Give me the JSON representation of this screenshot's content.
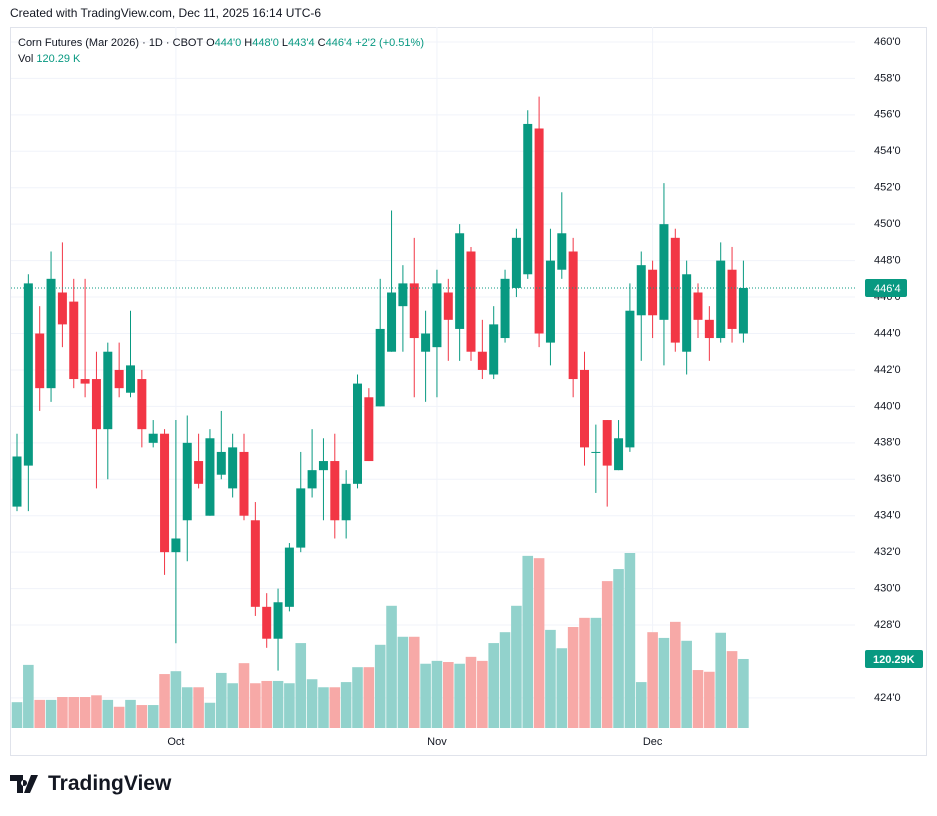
{
  "created": "Created with TradingView.com, Dec 11, 2025 16:14 UTC-6",
  "logo": "TradingView",
  "chart_data": {
    "type": "candlestick",
    "symbol": "Corn Futures (Mar 2026) · 1D · CBOT",
    "ohlc_legend": [
      {
        "key": "O",
        "value": "444'0"
      },
      {
        "key": "H",
        "value": "448'0"
      },
      {
        "key": "L",
        "value": "443'4"
      },
      {
        "key": "C",
        "value": "446'4"
      }
    ],
    "change": "+2'2 (+0.51%)",
    "volume_legend": {
      "key": "Vol",
      "value": "120.29 K"
    },
    "categories": [
      null,
      null,
      null,
      null,
      null,
      null,
      null,
      null,
      null,
      null,
      null,
      null,
      null,
      null,
      "Oct",
      null,
      null,
      null,
      null,
      null,
      null,
      null,
      null,
      null,
      null,
      null,
      null,
      null,
      null,
      null,
      null,
      null,
      null,
      null,
      null,
      null,
      null,
      "Nov",
      null,
      null,
      null,
      null,
      null,
      null,
      null,
      null,
      null,
      null,
      null,
      null,
      null,
      null,
      null,
      null,
      null,
      null,
      "Dec",
      null,
      null,
      null,
      null,
      null,
      null,
      null,
      null
    ],
    "open": [
      434.5,
      436.75,
      444,
      441,
      446.25,
      445.75,
      441.5,
      441.5,
      438.75,
      442,
      440.75,
      441.5,
      438,
      438.5,
      432,
      433.75,
      437,
      434,
      436.25,
      435.5,
      437.5,
      433.75,
      429,
      427.25,
      429,
      432.25,
      435.5,
      436.5,
      437,
      433.75,
      435.75,
      440.5,
      440,
      443,
      445.5,
      446.75,
      443,
      443.25,
      446.25,
      444.25,
      448.5,
      443,
      441.75,
      443.75,
      446.5,
      447.25,
      455.25,
      443.5,
      447.5,
      448.5,
      442,
      437.5,
      439.25,
      436.5,
      437.75,
      445,
      447.5,
      444.75,
      449.25,
      443,
      446.25,
      444.75,
      443.75,
      447.5,
      444
    ],
    "high": [
      438.5,
      447.25,
      445.5,
      448.5,
      449,
      447,
      447,
      443,
      443.5,
      443.5,
      445.25,
      442,
      439.25,
      438.75,
      439.25,
      439.5,
      438.5,
      438.75,
      439.75,
      438.5,
      438.5,
      434.75,
      429.75,
      430,
      432.5,
      437.5,
      438.75,
      438.25,
      438.5,
      436.5,
      441.75,
      441,
      447,
      450.75,
      447.75,
      449.25,
      445.25,
      447.5,
      447,
      450,
      448.75,
      444.75,
      445.5,
      447.5,
      449.75,
      456.25,
      457,
      449.75,
      451.75,
      449.25,
      443,
      439,
      439.25,
      439.25,
      446.75,
      448.5,
      448,
      452.25,
      449.75,
      448,
      446.75,
      445.5,
      449,
      448.75,
      448
    ],
    "low": [
      434.25,
      434.25,
      439.75,
      440.25,
      443.25,
      441,
      440.5,
      435.5,
      436,
      440.5,
      440.5,
      437.75,
      437.75,
      430.75,
      427,
      431.5,
      435.5,
      434,
      436,
      435,
      433.75,
      428.5,
      426.75,
      425.5,
      428.75,
      432,
      435,
      433.75,
      432.75,
      432.75,
      435.5,
      437,
      440,
      443,
      443,
      440.5,
      440.25,
      440.5,
      442.5,
      442.5,
      442.5,
      441.5,
      441.5,
      443.5,
      446,
      447,
      443.25,
      442.25,
      447,
      440.5,
      436.75,
      435.25,
      434.5,
      436.5,
      437.5,
      442.5,
      443.75,
      442.25,
      443,
      441.75,
      443.75,
      442.5,
      443.5,
      443.5,
      443.5
    ],
    "close": [
      437.25,
      446.75,
      441,
      447,
      444.5,
      441.5,
      441.25,
      438.75,
      443,
      441,
      442.25,
      438.75,
      438.5,
      432,
      432.75,
      438,
      435.75,
      438.25,
      437.5,
      437.75,
      434,
      429,
      427.25,
      429.25,
      432.25,
      435.5,
      436.5,
      437,
      433.75,
      435.75,
      441.25,
      437,
      444.25,
      446.25,
      446.75,
      443.75,
      444,
      446.75,
      444.75,
      449.5,
      443,
      442,
      444.5,
      447,
      449.25,
      455.5,
      444,
      448,
      449.5,
      441.5,
      437.75,
      437.5,
      436.75,
      438.25,
      445.25,
      447.75,
      445,
      450,
      443.5,
      447.25,
      444.75,
      443.75,
      448,
      444.25,
      446.5
    ],
    "volume": [
      45,
      110,
      49,
      49,
      54,
      54,
      54,
      57,
      49,
      37,
      49,
      40,
      40,
      94,
      99,
      71,
      71,
      44,
      96,
      78,
      113,
      78,
      82,
      82,
      78,
      148,
      85,
      71,
      71,
      80,
      106,
      106,
      145,
      213,
      159,
      159,
      112,
      117,
      115,
      112,
      124,
      117,
      148,
      167,
      213,
      300,
      296,
      171,
      139,
      176,
      192,
      192,
      256,
      277,
      305,
      80,
      167,
      157,
      185,
      152,
      101,
      98,
      166,
      134,
      120.29
    ],
    "volume_last_label": {
      "value": 120.29,
      "label": "120.29K"
    },
    "last_price": {
      "value": 446.5,
      "label": "446'4"
    },
    "ylim": [
      422.35,
      460.82
    ],
    "yticks": [
      {
        "value": 424,
        "label": "424'0"
      },
      {
        "value": 428,
        "label": "428'0"
      },
      {
        "value": 430,
        "label": "430'0"
      },
      {
        "value": 432,
        "label": "432'0"
      },
      {
        "value": 434,
        "label": "434'0"
      },
      {
        "value": 436,
        "label": "436'0"
      },
      {
        "value": 438,
        "label": "438'0"
      },
      {
        "value": 440,
        "label": "440'0"
      },
      {
        "value": 442,
        "label": "442'0"
      },
      {
        "value": 444,
        "label": "444'0"
      },
      {
        "value": 446,
        "label": "446'0"
      },
      {
        "value": 448,
        "label": "448'0"
      },
      {
        "value": 450,
        "label": "450'0"
      },
      {
        "value": 452,
        "label": "452'0"
      },
      {
        "value": 454,
        "label": "454'0"
      },
      {
        "value": 456,
        "label": "456'0"
      },
      {
        "value": 458,
        "label": "458'0"
      },
      {
        "value": 460,
        "label": "460'0"
      }
    ],
    "up_color": "#089981",
    "down_color": "#f23645",
    "volume_up_color": "#92d2cc",
    "volume_down_color": "#f7a9a7",
    "grid": true
  }
}
